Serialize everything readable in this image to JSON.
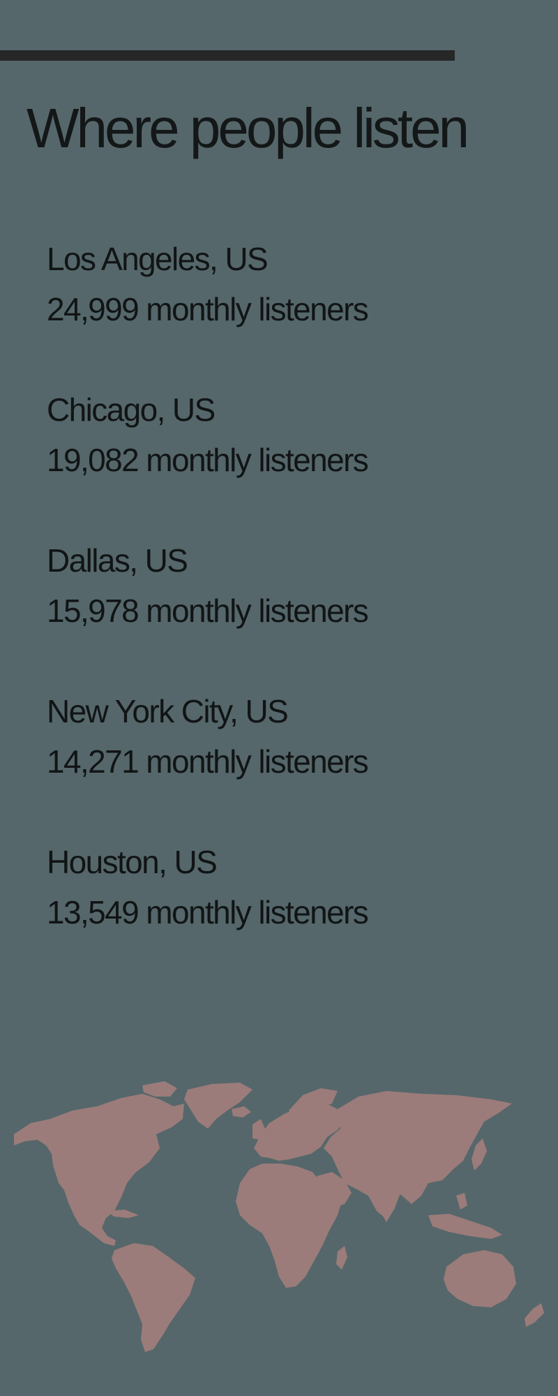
{
  "title": "Where people listen",
  "cities": [
    {
      "name": "Los Angeles, US",
      "listeners": "24,999 monthly listeners"
    },
    {
      "name": "Chicago, US",
      "listeners": "19,082 monthly listeners"
    },
    {
      "name": "Dallas, US",
      "listeners": "15,978 monthly listeners"
    },
    {
      "name": "New York City, US",
      "listeners": "14,271 monthly listeners"
    },
    {
      "name": "Houston, US",
      "listeners": "13,549 monthly listeners"
    }
  ],
  "colors": {
    "background": "#55676a",
    "bar": "#262828",
    "text": "#121516",
    "map": "#9b7c7a"
  },
  "icons": {
    "map": "world-map-icon"
  }
}
